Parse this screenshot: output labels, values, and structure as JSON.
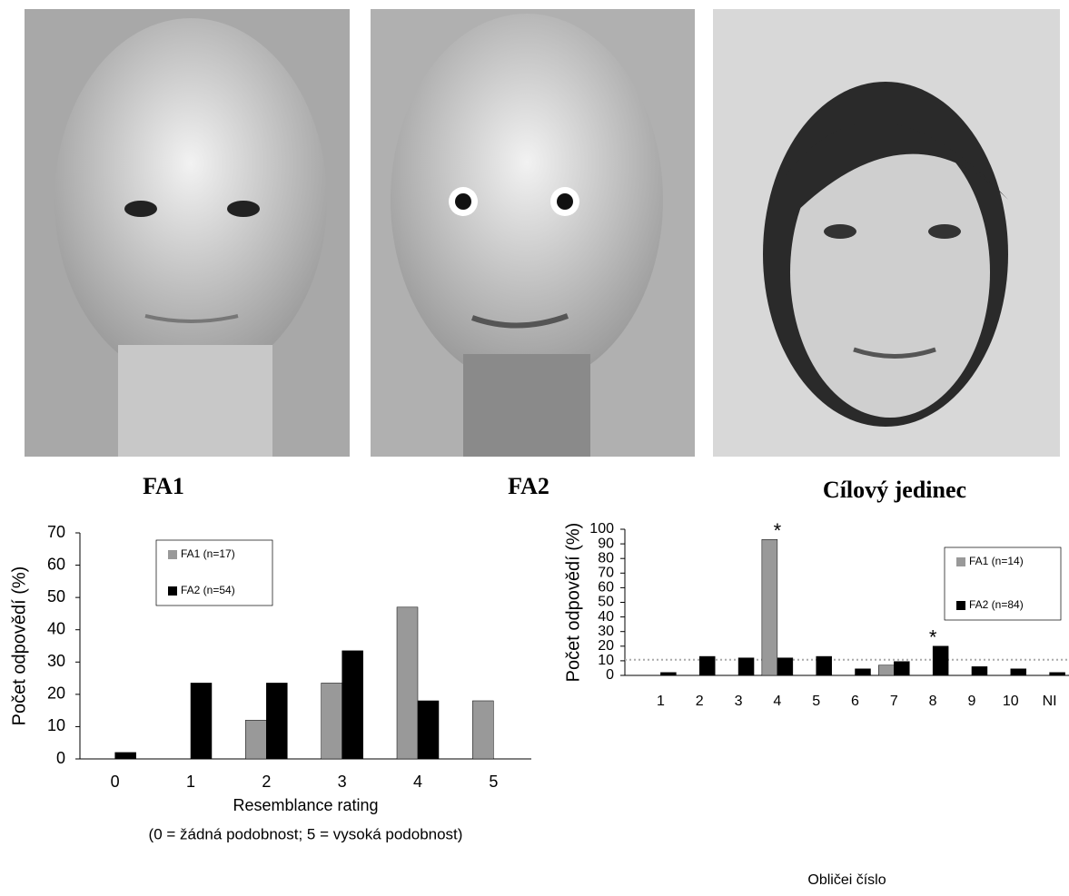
{
  "images": [
    {
      "caption": "FA1"
    },
    {
      "caption": "FA2"
    },
    {
      "caption": "Cílový jedinec"
    }
  ],
  "chart_data": [
    {
      "type": "bar",
      "categories": [
        "0",
        "1",
        "2",
        "3",
        "4",
        "5"
      ],
      "series": [
        {
          "name": "FA1 (n=17)",
          "color": "#999999",
          "values": [
            0,
            0,
            12,
            23.5,
            47,
            18
          ]
        },
        {
          "name": "FA2 (n=54)",
          "color": "#000000",
          "values": [
            2,
            23.5,
            23.5,
            33.5,
            18,
            0
          ]
        }
      ],
      "ylim": [
        0,
        70
      ],
      "yticks": [
        0,
        10,
        20,
        30,
        40,
        50,
        60,
        70
      ],
      "ylabel": "Počet odpovědí (%)",
      "xlabel": "Resemblance rating",
      "note": "(0 = žádná podobnost; 5 = vysoká podobnost)"
    },
    {
      "type": "bar",
      "categories": [
        "1",
        "2",
        "3",
        "4",
        "5",
        "6",
        "7",
        "8",
        "9",
        "10",
        "NI"
      ],
      "series": [
        {
          "name": "FA1 (n=14)",
          "color": "#999999",
          "values": [
            0,
            0,
            0,
            93,
            0,
            0,
            7,
            0,
            0,
            0,
            0
          ]
        },
        {
          "name": "FA2 (n=84)",
          "color": "#000000",
          "values": [
            2,
            13,
            12,
            12,
            13,
            4.5,
            9.5,
            20,
            6,
            4.5,
            2
          ]
        }
      ],
      "ylim": [
        0,
        100
      ],
      "yticks": [
        0,
        10,
        20,
        30,
        40,
        50,
        60,
        70,
        80,
        90,
        100
      ],
      "ylabel": "Počet odpovědí (%)",
      "xlabel": "Obličei číslo",
      "reference_line": 10.7,
      "annotations": [
        {
          "text": "*",
          "category": "4"
        },
        {
          "text": "*",
          "category": "8"
        }
      ]
    }
  ]
}
